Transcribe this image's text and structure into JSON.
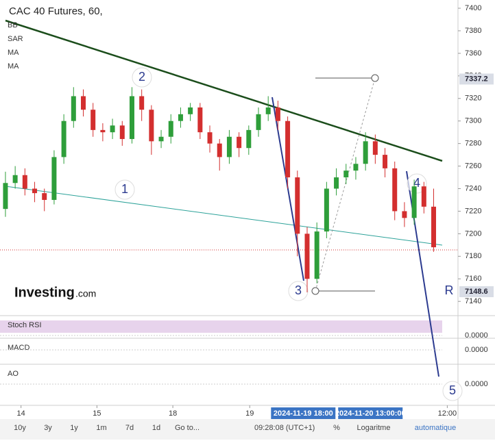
{
  "chart_data": {
    "type": "candlestick",
    "title": "CAC 40 Futures, 60,",
    "indicators": [
      "BB",
      "SAR",
      "MA",
      "MA"
    ],
    "open": [
      7222,
      7245,
      7252,
      7240,
      7236,
      7230,
      7268,
      7300,
      7322,
      7310,
      7292,
      7290,
      7296,
      7284,
      7322,
      7310,
      7282,
      7286,
      7300,
      7306,
      7312,
      7290,
      7280,
      7268,
      7286,
      7276,
      7292,
      7306,
      7312,
      7300,
      7250,
      7200,
      7160,
      7202,
      7240,
      7250,
      7256,
      7262,
      7282,
      7270,
      7258,
      7220,
      7214,
      7242,
      7224
    ],
    "high": [
      7255,
      7260,
      7258,
      7246,
      7240,
      7274,
      7306,
      7330,
      7328,
      7316,
      7298,
      7302,
      7300,
      7330,
      7328,
      7314,
      7292,
      7306,
      7312,
      7316,
      7316,
      7296,
      7284,
      7292,
      7290,
      7296,
      7312,
      7322,
      7318,
      7304,
      7256,
      7206,
      7210,
      7246,
      7258,
      7262,
      7268,
      7290,
      7288,
      7276,
      7264,
      7228,
      7248,
      7246,
      7240
    ],
    "low": [
      7215,
      7240,
      7234,
      7228,
      7220,
      7226,
      7262,
      7294,
      7304,
      7286,
      7282,
      7284,
      7278,
      7280,
      7300,
      7270,
      7276,
      7280,
      7294,
      7300,
      7284,
      7272,
      7256,
      7262,
      7268,
      7270,
      7286,
      7300,
      7292,
      7240,
      7180,
      7148,
      7156,
      7196,
      7234,
      7244,
      7248,
      7256,
      7262,
      7250,
      7212,
      7206,
      7208,
      7218,
      7184
    ],
    "close": [
      7245,
      7252,
      7240,
      7236,
      7230,
      7268,
      7300,
      7322,
      7310,
      7292,
      7290,
      7296,
      7284,
      7322,
      7310,
      7282,
      7286,
      7300,
      7306,
      7312,
      7290,
      7280,
      7268,
      7286,
      7276,
      7292,
      7306,
      7312,
      7300,
      7250,
      7200,
      7160,
      7202,
      7240,
      7250,
      7256,
      7262,
      7282,
      7270,
      7258,
      7220,
      7214,
      7242,
      7224,
      7188
    ],
    "up_color": "#2e9e3a",
    "down_color": "#d32f2f",
    "xlim": [
      -0.56,
      46.5
    ],
    "xticks": [
      {
        "value": 1.6,
        "label": "14"
      },
      {
        "value": 9.4,
        "label": "15"
      },
      {
        "value": 17.2,
        "label": "18"
      },
      {
        "value": 25.1,
        "label": "19"
      },
      {
        "value": 45.4,
        "label": "12:00"
      }
    ],
    "crosshair_labels": [
      {
        "value": 30.6,
        "label": "2024-11-19 18:00"
      },
      {
        "value": 37.5,
        "label": "2024-11-20 13:00:00"
      }
    ],
    "ylim": [
      7131,
      7407.3
    ],
    "yticks": [
      7140,
      7160,
      7180,
      7200,
      7220,
      7240,
      7260,
      7280,
      7300,
      7320,
      7340,
      7360,
      7380,
      7400
    ],
    "axis_markers": [
      7337.2,
      7148.6
    ],
    "annotations": [
      "1",
      "2",
      "3",
      "4",
      "5",
      "R"
    ],
    "panels": [
      {
        "name": "Stoch RSI",
        "yticks": [
          {
            "value": 0,
            "label": "0.0000"
          }
        ]
      },
      {
        "name": "MACD",
        "yticks": [
          {
            "value": 0,
            "label": "0.0000"
          }
        ]
      },
      {
        "name": "AO",
        "yticks": [
          {
            "value": 0,
            "label": "0.0000"
          }
        ]
      }
    ]
  },
  "logo": {
    "name": "Investing",
    "suffix": ".com"
  },
  "toolbar": {
    "ranges": [
      "10y",
      "3y",
      "1y",
      "1m",
      "7d",
      "1d",
      "Go to..."
    ],
    "clock": "09:28:08 (UTC+1)",
    "options": [
      "%",
      "Logaritme",
      "automatique"
    ]
  }
}
